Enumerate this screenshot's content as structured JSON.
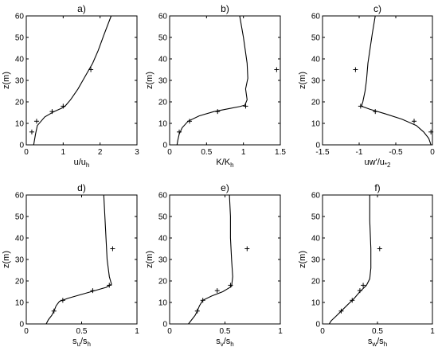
{
  "chart_data": [
    {
      "type": "line",
      "title": "a)",
      "xlabel": "u/u",
      "xlabel_sub": "h",
      "ylabel": "z(m)",
      "xlim": [
        0,
        3
      ],
      "ylim": [
        0,
        60
      ],
      "xticks": [
        0,
        1,
        2,
        3
      ],
      "xtick_labels": [
        "0",
        "1",
        "2",
        "3"
      ],
      "yticks": [
        0,
        10,
        20,
        30,
        40,
        50,
        60
      ],
      "ytick_labels": [
        "0",
        "10",
        "20",
        "30",
        "40",
        "50",
        "60"
      ],
      "series": [
        {
          "type": "line",
          "x": [
            0.2,
            0.22,
            0.25,
            0.3,
            0.5,
            0.75,
            0.95,
            1.05,
            1.2,
            1.4,
            1.6,
            1.8,
            1.95,
            2.1,
            2.3
          ],
          "y": [
            0,
            2,
            5,
            9,
            13,
            15.5,
            17,
            18,
            21,
            26,
            32,
            38,
            44,
            51,
            60
          ]
        },
        {
          "type": "scatter",
          "x": [
            0.15,
            0.28,
            0.7,
            1.0,
            1.75
          ],
          "y": [
            6,
            11,
            15.5,
            18,
            35
          ]
        }
      ]
    },
    {
      "type": "line",
      "title": "b)",
      "xlabel": "K/K",
      "xlabel_sub": "h",
      "ylabel": "z(m)",
      "xlim": [
        0,
        1.5
      ],
      "ylim": [
        0,
        60
      ],
      "xticks": [
        0,
        0.5,
        1,
        1.5
      ],
      "xtick_labels": [
        "0",
        "0.5",
        "1",
        "1.5"
      ],
      "yticks": [
        0,
        10,
        20,
        30,
        40,
        50,
        60
      ],
      "ytick_labels": [
        "0",
        "10",
        "20",
        "30",
        "40",
        "50",
        "60"
      ],
      "series": [
        {
          "type": "line",
          "x": [
            0.1,
            0.11,
            0.13,
            0.17,
            0.25,
            0.4,
            0.6,
            0.8,
            0.95,
            1.02,
            1.05,
            1.03,
            1.06,
            1.05,
            1.0,
            0.95
          ],
          "y": [
            0,
            2,
            5,
            8,
            11,
            13.5,
            15.5,
            16.8,
            17.8,
            18.5,
            21,
            26,
            31,
            38,
            50,
            60
          ]
        },
        {
          "type": "scatter",
          "x": [
            0.13,
            0.27,
            0.65,
            1.03,
            1.45
          ],
          "y": [
            6,
            11,
            15.5,
            18,
            35
          ]
        }
      ]
    },
    {
      "type": "line",
      "title": "c)",
      "xlabel": "uw'/u",
      "xlabel_sub": "*2",
      "ylabel": "z(m)",
      "xlim": [
        -1.5,
        0
      ],
      "ylim": [
        0,
        60
      ],
      "xticks": [
        -1.5,
        -1,
        -0.5,
        0
      ],
      "xtick_labels": [
        "-1.5",
        "-1",
        "-0.5",
        "0"
      ],
      "yticks": [
        0,
        10,
        20,
        30,
        40,
        50,
        60
      ],
      "ytick_labels": [
        "0",
        "10",
        "20",
        "30",
        "40",
        "50",
        "60"
      ],
      "series": [
        {
          "type": "line",
          "x": [
            -0.02,
            -0.05,
            -0.12,
            -0.22,
            -0.42,
            -0.65,
            -0.85,
            -0.97,
            -0.95,
            -0.92,
            -0.9,
            -0.88,
            -0.85,
            -0.82,
            -0.78
          ],
          "y": [
            0,
            3,
            6,
            9,
            12,
            14.5,
            16.5,
            18,
            20,
            25,
            30,
            38,
            45,
            52,
            60
          ]
        },
        {
          "type": "scatter",
          "x": [
            -0.02,
            -0.25,
            -0.78,
            -0.98,
            -1.05
          ],
          "y": [
            6,
            11,
            15.5,
            18,
            35
          ]
        }
      ]
    },
    {
      "type": "line",
      "title": "d)",
      "xlabel": "s",
      "xlabel_sub": "u",
      "xlabel_mid": "/s",
      "xlabel_sub2": "h",
      "ylabel": "z(m)",
      "xlim": [
        0,
        1
      ],
      "ylim": [
        0,
        60
      ],
      "xticks": [
        0,
        0.5,
        1
      ],
      "xtick_labels": [
        "0",
        "0.5",
        "1"
      ],
      "yticks": [
        0,
        10,
        20,
        30,
        40,
        50,
        60
      ],
      "ytick_labels": [
        "0",
        "10",
        "20",
        "30",
        "40",
        "50",
        "60"
      ],
      "series": [
        {
          "type": "line",
          "x": [
            0.18,
            0.2,
            0.23,
            0.25,
            0.27,
            0.3,
            0.38,
            0.55,
            0.72,
            0.77,
            0.75,
            0.73,
            0.72,
            0.71,
            0.7
          ],
          "y": [
            0,
            2,
            4,
            6,
            8.5,
            10.5,
            12,
            14.5,
            17,
            18.5,
            22,
            30,
            40,
            50,
            60
          ]
        },
        {
          "type": "scatter",
          "x": [
            0.25,
            0.33,
            0.6,
            0.75,
            0.78
          ],
          "y": [
            6,
            11,
            15.5,
            18,
            35
          ]
        }
      ]
    },
    {
      "type": "line",
      "title": "e)",
      "xlabel": "s",
      "xlabel_sub": "v",
      "xlabel_mid": "/s",
      "xlabel_sub2": "h",
      "ylabel": "z(m)",
      "xlim": [
        0,
        1
      ],
      "ylim": [
        0,
        60
      ],
      "xticks": [
        0,
        0.5,
        1
      ],
      "xtick_labels": [
        "0",
        "0.5",
        "1"
      ],
      "yticks": [
        0,
        10,
        20,
        30,
        40,
        50,
        60
      ],
      "ytick_labels": [
        "0",
        "10",
        "20",
        "30",
        "40",
        "50",
        "60"
      ],
      "series": [
        {
          "type": "line",
          "x": [
            0.17,
            0.2,
            0.23,
            0.25,
            0.27,
            0.3,
            0.38,
            0.48,
            0.56,
            0.57,
            0.56,
            0.55,
            0.55,
            0.54
          ],
          "y": [
            0,
            2,
            4,
            6,
            8.5,
            11,
            13,
            15,
            17.5,
            22,
            30,
            40,
            50,
            60
          ]
        },
        {
          "type": "scatter",
          "x": [
            0.25,
            0.3,
            0.43,
            0.55,
            0.7
          ],
          "y": [
            6,
            11,
            15.5,
            18,
            35
          ]
        }
      ]
    },
    {
      "type": "line",
      "title": "f)",
      "xlabel": "s",
      "xlabel_sub": "w",
      "xlabel_mid": "/s",
      "xlabel_sub2": "h",
      "ylabel": "z(m)",
      "xlim": [
        0,
        1
      ],
      "ylim": [
        0,
        60
      ],
      "xticks": [
        0,
        0.5,
        1
      ],
      "xtick_labels": [
        "0",
        "0.5",
        "1"
      ],
      "yticks": [
        0,
        10,
        20,
        30,
        40,
        50,
        60
      ],
      "ytick_labels": [
        "0",
        "10",
        "20",
        "30",
        "40",
        "50",
        "60"
      ],
      "series": [
        {
          "type": "line",
          "x": [
            0.06,
            0.08,
            0.12,
            0.17,
            0.23,
            0.29,
            0.34,
            0.4,
            0.43,
            0.44,
            0.44,
            0.43,
            0.43
          ],
          "y": [
            0,
            1.5,
            3.5,
            6,
            9,
            12,
            15,
            18,
            21,
            26,
            35,
            48,
            60
          ]
        },
        {
          "type": "scatter",
          "x": [
            0.17,
            0.27,
            0.34,
            0.37,
            0.52
          ],
          "y": [
            6,
            11,
            15.5,
            18,
            35
          ]
        }
      ]
    }
  ]
}
